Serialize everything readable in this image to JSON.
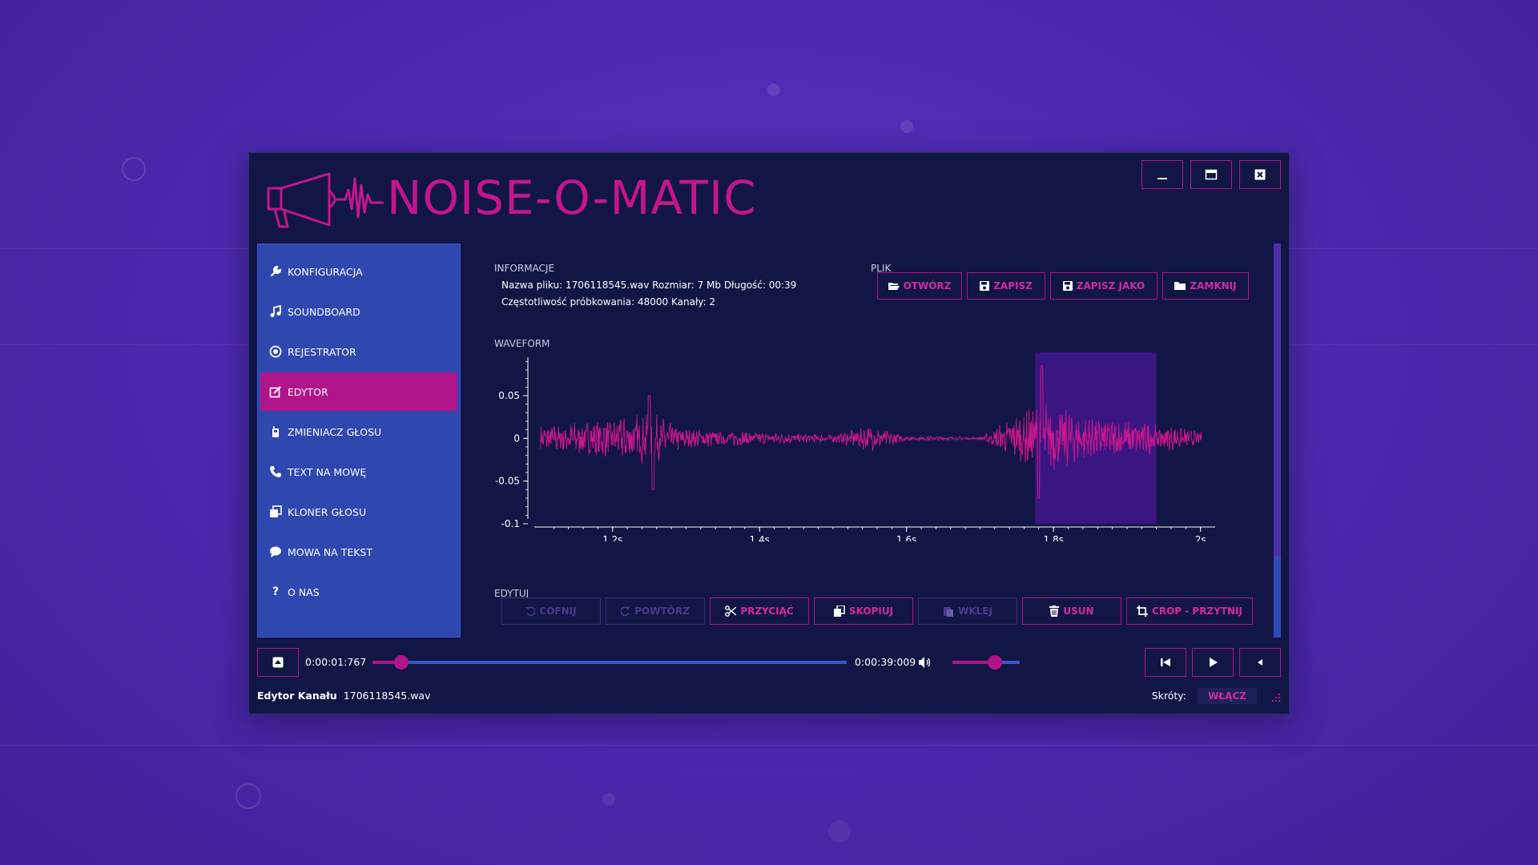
{
  "app": {
    "title": "NOISE-O-MATIC",
    "accent": "#b0148a",
    "window_bg": "#121644",
    "sidebar_bg": "#2e48b0"
  },
  "window_controls": [
    {
      "name": "minimize",
      "icon": "minimize-icon"
    },
    {
      "name": "maximize",
      "icon": "maximize-icon"
    },
    {
      "name": "close",
      "icon": "close-icon"
    }
  ],
  "sidebar": {
    "items": [
      {
        "label": "KONFIGURACJA",
        "icon": "wrench-icon",
        "active": false
      },
      {
        "label": "SOUNDBOARD",
        "icon": "music-note-icon",
        "active": false
      },
      {
        "label": "REJESTRATOR",
        "icon": "record-icon",
        "active": false
      },
      {
        "label": "EDYTOR",
        "icon": "edit-icon",
        "active": true
      },
      {
        "label": "ZMIENIACZ GŁOSU",
        "icon": "walkie-talkie-icon",
        "active": false
      },
      {
        "label": "TEXT NA MOWĘ",
        "icon": "phone-icon",
        "active": false
      },
      {
        "label": "KLONER GŁOSU",
        "icon": "clone-icon",
        "active": false
      },
      {
        "label": "MOWA NA TEKST",
        "icon": "speech-bubble-icon",
        "active": false
      },
      {
        "label": "O NAS",
        "icon": "question-icon",
        "active": false
      }
    ]
  },
  "info": {
    "section": "INFORMACJE",
    "line1": "Nazwa pliku: 1706118545.wav Rozmiar: 7 Mb Długość: 00:39",
    "line2": "Częstotliwość próbkowania: 48000 Kanały: 2"
  },
  "file": {
    "section": "PLIK",
    "buttons": [
      {
        "label": "OTWÓRZ",
        "icon": "folder-open-icon"
      },
      {
        "label": "ZAPISZ",
        "icon": "save-icon"
      },
      {
        "label": "ZAPISZ JAKO",
        "icon": "save-as-icon"
      },
      {
        "label": "ZAMKNIJ",
        "icon": "folder-icon"
      }
    ]
  },
  "waveform": {
    "section": "WAVEFORM",
    "y_ticks": [
      "0.05",
      "0",
      "-0.05",
      "-0.1"
    ],
    "x_ticks": [
      "1.2s",
      "1.4s",
      "1.6s",
      "1.8s",
      "2s"
    ],
    "selection_range_s": [
      1.775,
      1.94
    ],
    "x_range_s": [
      1.1,
      2.02
    ],
    "y_range": [
      -0.1,
      0.095
    ],
    "line_color": "#c8168c",
    "selection_color": "#3a1680"
  },
  "chart_data": {
    "type": "line",
    "title": "",
    "xlabel": "",
    "ylabel": "",
    "x_ticks": [
      "1.2s",
      "1.4s",
      "1.6s",
      "1.8s",
      "2s"
    ],
    "y_ticks": [
      0.05,
      0,
      -0.05,
      -0.1
    ],
    "xlim": [
      1.1,
      2.02
    ],
    "ylim": [
      -0.1,
      0.095
    ],
    "grid": false,
    "selection": [
      1.775,
      1.94
    ],
    "envelope": [
      {
        "x": 1.1,
        "amp": 0.02
      },
      {
        "x": 1.2,
        "amp": 0.03
      },
      {
        "x": 1.25,
        "amp": 0.04
      },
      {
        "x": 1.3,
        "amp": 0.015
      },
      {
        "x": 1.4,
        "amp": 0.01
      },
      {
        "x": 1.5,
        "amp": 0.006
      },
      {
        "x": 1.55,
        "amp": 0.02
      },
      {
        "x": 1.6,
        "amp": 0.004
      },
      {
        "x": 1.7,
        "amp": 0.002
      },
      {
        "x": 1.78,
        "amp": 0.06
      },
      {
        "x": 1.85,
        "amp": 0.03
      },
      {
        "x": 1.93,
        "amp": 0.025
      },
      {
        "x": 2.0,
        "amp": 0.01
      }
    ]
  },
  "edit": {
    "section": "EDYTUJ",
    "buttons": [
      {
        "label": "COFNIJ",
        "icon": "undo-icon",
        "enabled": false
      },
      {
        "label": "POWTÓRZ",
        "icon": "redo-icon",
        "enabled": false
      },
      {
        "label": "PRZYCIĄĆ",
        "icon": "scissors-icon",
        "enabled": true
      },
      {
        "label": "SKOPIUJ",
        "icon": "copy-icon",
        "enabled": true
      },
      {
        "label": "WKLEJ",
        "icon": "paste-icon",
        "enabled": false
      },
      {
        "label": "USUŃ",
        "icon": "trash-icon",
        "enabled": true
      },
      {
        "label": "CROP - PRZYTNIJ",
        "icon": "crop-icon",
        "enabled": true
      }
    ]
  },
  "transport": {
    "current_time": "0:00:01:767",
    "total_time": "0:00:39:009",
    "position_fraction": 0.06,
    "volume_fraction": 0.63
  },
  "status": {
    "label": "Edytor Kanału",
    "file": "1706118545.wav",
    "shortcuts_label": "Skróty:",
    "shortcuts_button": "WŁĄCZ"
  }
}
